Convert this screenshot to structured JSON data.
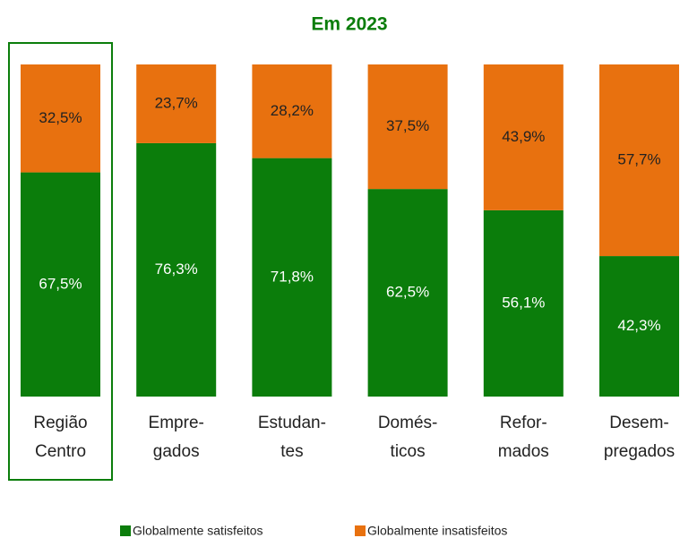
{
  "chart_data": {
    "type": "stacked_bar",
    "title": "Em 2023",
    "categories": [
      [
        "Região",
        "Centro"
      ],
      [
        "Empre-",
        "gados"
      ],
      [
        "Estudan-",
        "tes"
      ],
      [
        "Domés-",
        "ticos"
      ],
      [
        "Refor-",
        "mados"
      ],
      [
        "Desem-",
        "pregados"
      ]
    ],
    "ylim": [
      0,
      100
    ],
    "series": [
      {
        "name": "Globalmente satisfeitos",
        "color": "#0b7d0b",
        "values": [
          67.5,
          76.3,
          71.8,
          62.5,
          56.1,
          42.3
        ],
        "value_labels": [
          "67,5%",
          "76,3%",
          "71,8%",
          "62,5%",
          "56,1%",
          "42,3%"
        ]
      },
      {
        "name": "Globalmente insatisfeitos",
        "color": "#e8710f",
        "values": [
          32.5,
          23.7,
          28.2,
          37.5,
          43.9,
          57.7
        ],
        "value_labels": [
          "32,5%",
          "23,7%",
          "28,2%",
          "37,5%",
          "43,9%",
          "57,7%"
        ]
      }
    ]
  }
}
